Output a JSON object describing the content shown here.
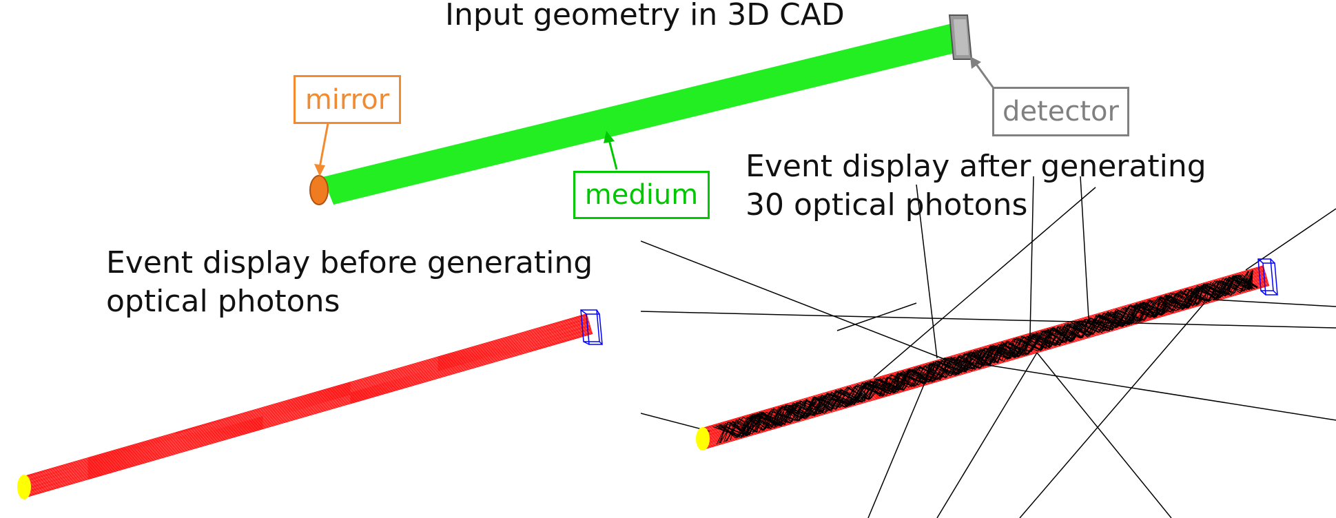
{
  "titles": {
    "cad": "Input geometry in 3D CAD",
    "before_line1": "Event display before generating",
    "before_line2": "optical photons",
    "after_line1": "Event display after generating",
    "after_line2": "30 optical photons"
  },
  "callouts": {
    "mirror": "mirror",
    "detector": "detector",
    "medium": "medium"
  },
  "colors": {
    "mirror": "#f28a30",
    "mirror_fill": "#f07c22",
    "detector": "#808080",
    "medium": "#00c800",
    "medium_fill": "#22ee22",
    "track": "#ff0000",
    "photon": "#000000",
    "end_cap": "#ffff00",
    "detector_wire": "#0000ff"
  },
  "photon_count": 30
}
